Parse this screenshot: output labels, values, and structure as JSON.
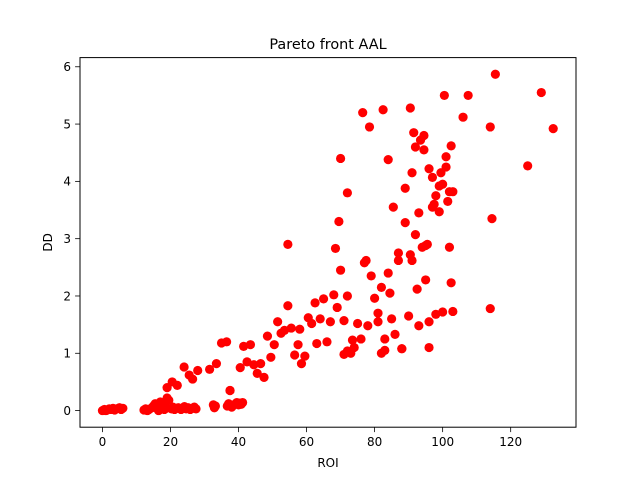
{
  "chart_data": {
    "type": "scatter",
    "title": "Pareto front AAL",
    "xlabel": "ROI",
    "ylabel": "DD",
    "xlim": [
      -6.6,
      139.2
    ],
    "ylim": [
      -0.29,
      6.16
    ],
    "xticks": [
      0,
      20,
      40,
      60,
      80,
      100,
      120
    ],
    "yticks": [
      0,
      1,
      2,
      3,
      4,
      5,
      6
    ],
    "grid": false,
    "legend": "none",
    "marker_color": "#ff0000",
    "series": [
      {
        "x": [
          0.0,
          0.6,
          1.0,
          1.4,
          2.0,
          2.6,
          3.1,
          3.6,
          4.1,
          5.0,
          5.5,
          6.0,
          12.2,
          12.7,
          13.2,
          13.7,
          14.5,
          15.0,
          15.5,
          16.0,
          16.5,
          17.0,
          17.4,
          17.8,
          18.2,
          18.6,
          19.0,
          19.5,
          20.3,
          20.7,
          21.2,
          21.6,
          22.3,
          23.1,
          24.1,
          24.6,
          25.2,
          25.8,
          26.4,
          27.0,
          27.5,
          32.6,
          32.9,
          33.2,
          36.7,
          37.1,
          37.5,
          38.0,
          38.5,
          39.5,
          40.0,
          40.4,
          40.8,
          41.2,
          17.0,
          19.0,
          20.5,
          22.0,
          24.0,
          25.5,
          26.5,
          28.0,
          31.5,
          33.5,
          35.0,
          36.5,
          37.5,
          40.5,
          41.5,
          42.5,
          43.5,
          44.5,
          45.5,
          46.5,
          47.5,
          48.5,
          49.5,
          50.5,
          51.5,
          52.5,
          53.5,
          54.5,
          55.5,
          56.5,
          57.5,
          58.0,
          58.5,
          59.5,
          60.5,
          61.5,
          62.5,
          63.0,
          64.0,
          65.0,
          66.0,
          67.0,
          68.0,
          69.0,
          70.0,
          71.0,
          72.0,
          73.0,
          74.0,
          75.0,
          76.0,
          77.0,
          78.0,
          79.0,
          80.0,
          81.0,
          82.0,
          83.0,
          84.0,
          85.0,
          86.0,
          87.0,
          88.0,
          89.0,
          90.0,
          91.0,
          92.0,
          93.0,
          94.0,
          95.0,
          96.0,
          97.0,
          98.0,
          99.0,
          100.0,
          101.0,
          102.0,
          103.0,
          71.0,
          72.5,
          72.0,
          73.5,
          69.5,
          70.0,
          68.5,
          72.0,
          76.5,
          77.5,
          81.0,
          82.5,
          84.0,
          84.5,
          85.5,
          87.0,
          89.0,
          90.5,
          91.0,
          91.5,
          92.0,
          93.0,
          93.5,
          94.5,
          95.0,
          96.0,
          97.0,
          97.5,
          98.0,
          99.0,
          99.5,
          100.0,
          101.0,
          101.5,
          102.0,
          102.5,
          103.0,
          106.0,
          107.5,
          114.0,
          114.5,
          115.5,
          125.0,
          129.0,
          132.5,
          54.5,
          88.0,
          94.5,
          96.0,
          90.5,
          100.5,
          83.0,
          82.0,
          78.5,
          92.5,
          95.5,
          114.0,
          102.5
        ],
        "y": [
          0.0,
          0.02,
          0.0,
          0.01,
          0.03,
          0.02,
          0.04,
          0.01,
          0.03,
          0.05,
          0.02,
          0.04,
          0.01,
          0.03,
          0.0,
          0.02,
          0.05,
          0.08,
          0.12,
          0.04,
          0.0,
          0.15,
          0.07,
          0.1,
          0.02,
          0.05,
          0.22,
          0.18,
          0.03,
          0.06,
          0.02,
          0.04,
          0.05,
          0.02,
          0.07,
          0.03,
          0.05,
          0.02,
          0.04,
          0.06,
          0.03,
          0.1,
          0.05,
          0.08,
          0.08,
          0.12,
          0.35,
          0.06,
          0.1,
          0.14,
          0.1,
          0.13,
          0.11,
          0.14,
          0.05,
          0.4,
          0.5,
          0.44,
          0.76,
          0.62,
          0.55,
          0.7,
          0.72,
          0.82,
          1.18,
          1.2,
          0.35,
          0.75,
          1.12,
          0.85,
          1.15,
          0.8,
          0.65,
          0.82,
          0.58,
          1.3,
          0.93,
          1.15,
          1.55,
          1.35,
          1.4,
          1.83,
          1.44,
          0.97,
          1.15,
          1.42,
          0.82,
          0.95,
          1.62,
          1.52,
          1.88,
          1.17,
          1.6,
          1.95,
          1.2,
          1.55,
          2.02,
          1.8,
          2.45,
          1.57,
          2.0,
          1.0,
          1.1,
          1.52,
          1.25,
          2.58,
          1.48,
          2.35,
          1.96,
          1.7,
          2.15,
          1.25,
          2.4,
          1.6,
          1.33,
          2.75,
          1.08,
          3.88,
          1.65,
          2.62,
          3.07,
          1.48,
          2.85,
          2.28,
          1.55,
          3.55,
          1.68,
          3.47,
          1.72,
          4.25,
          3.82,
          1.73,
          0.98,
          1.02,
          1.04,
          1.23,
          3.3,
          4.4,
          2.83,
          3.8,
          5.2,
          2.62,
          1.55,
          5.25,
          4.38,
          2.05,
          3.55,
          2.62,
          3.28,
          2.72,
          4.15,
          4.85,
          4.6,
          3.45,
          4.72,
          4.55,
          2.88,
          4.22,
          4.07,
          3.6,
          3.75,
          3.92,
          4.15,
          3.95,
          4.43,
          3.65,
          2.85,
          4.62,
          3.82,
          5.12,
          5.5,
          1.78,
          3.35,
          5.87,
          4.27,
          5.55,
          4.92,
          2.9,
          1.08,
          4.8,
          1.1,
          5.28,
          5.5,
          1.05,
          1.0,
          4.95,
          2.12,
          2.9,
          4.95,
          2.23
        ]
      }
    ]
  }
}
